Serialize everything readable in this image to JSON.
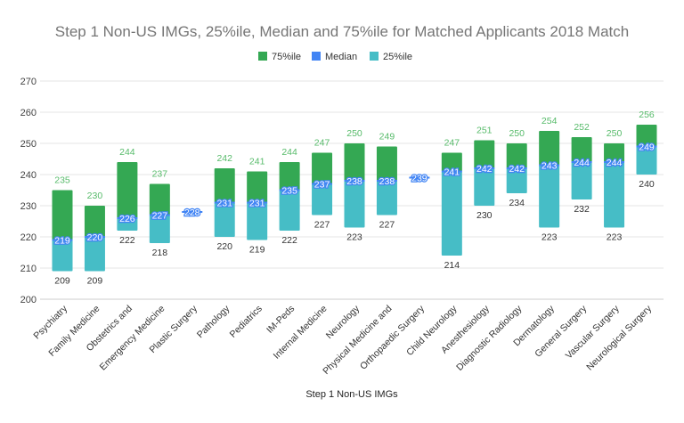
{
  "chart_data": {
    "type": "bar",
    "subtype": "floating-range",
    "title": "Step 1 Non-US IMGs, 25%ile, Median and 75%ile for Matched Applicants 2018 Match",
    "xlabel": "Step 1 Non-US IMGs",
    "ylabel": "",
    "ylim": [
      200,
      270
    ],
    "yticks": [
      200,
      210,
      220,
      230,
      240,
      250,
      260,
      270
    ],
    "grid": true,
    "legend_position": "top",
    "categories": [
      "Psychiatry",
      "Family Medicine",
      "Obstetrics and",
      "Emergency Medicine",
      "Plastic Surgery",
      "Pathology",
      "Pediatrics",
      "IM-Peds",
      "Internal Medicine",
      "Neurology",
      "Physical Medicine and",
      "Orthopaedic Surgery",
      "Child Neurology",
      "Anesthesiology",
      "Diagnostic Radiology",
      "Dermatology",
      "General Surgery",
      "Vascular Surgery",
      "Neurological Surgery"
    ],
    "series": [
      {
        "name": "75%ile",
        "color": "#34a853",
        "values": [
          235,
          230,
          244,
          237,
          null,
          242,
          241,
          244,
          247,
          250,
          249,
          null,
          247,
          251,
          250,
          254,
          252,
          250,
          256
        ]
      },
      {
        "name": "Median",
        "color": "#4285f4",
        "values": [
          219,
          220,
          226,
          227,
          228,
          231,
          231,
          235,
          237,
          238,
          238,
          239,
          241,
          242,
          242,
          243,
          244,
          244,
          249
        ]
      },
      {
        "name": "25%ile",
        "color": "#46bdc6",
        "values": [
          209,
          209,
          222,
          218,
          null,
          220,
          219,
          222,
          227,
          223,
          227,
          null,
          214,
          230,
          234,
          223,
          232,
          223,
          240
        ]
      }
    ]
  }
}
